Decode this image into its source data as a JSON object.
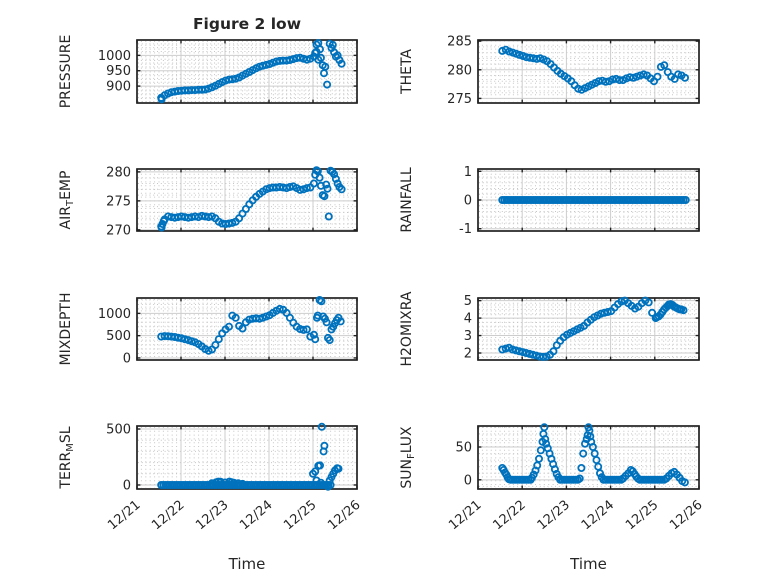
{
  "figure": {
    "title": "Figure 2 low",
    "xlabel": "Time",
    "background": "#ffffff",
    "colors": {
      "marker": "#0072BD",
      "axis": "#212121",
      "text": "#262626",
      "grid_major": "#cdcdcd",
      "grid_minor": "#c6c6c6"
    },
    "x_axis": {
      "lim": [
        21,
        26
      ],
      "ticks": [
        21,
        22,
        23,
        24,
        25,
        26
      ],
      "tick_labels": [
        "12/21",
        "12/22",
        "12/23",
        "12/24",
        "12/25",
        "12/26"
      ],
      "minor_step": 0.1
    }
  },
  "chart_data": [
    {
      "id": "pressure",
      "type": "scatter",
      "label": "PRESSURE",
      "label_parts": [
        {
          "t": "PRESSURE"
        }
      ],
      "ylim": [
        845,
        1050
      ],
      "yticks": [
        900,
        950,
        1000
      ],
      "yminor": 12.5,
      "series": [
        {
          "x0": 21.55,
          "dx": 0.077,
          "y": [
            862,
            870,
            876,
            880,
            882,
            884,
            885,
            886,
            886,
            887,
            887,
            888,
            888,
            889,
            892,
            896,
            901,
            907,
            913,
            918,
            921,
            922,
            924,
            928,
            934,
            940,
            946,
            952,
            958,
            963,
            966,
            969,
            972,
            976,
            980,
            982,
            983,
            983,
            985,
            988,
            991,
            992,
            989,
            986,
            989
          ]
        },
        {
          "x": [
            21.56,
            25.02,
            25.05,
            25.08,
            25.08,
            25.12,
            25.12,
            25.16,
            25.18,
            25.22,
            25.25,
            25.28,
            25.32,
            25.38,
            25.42,
            25.45,
            25.48,
            25.52,
            25.56,
            25.6,
            25.65
          ],
          "y": [
            857,
            996,
            1008,
            1035,
            1012,
            1040,
            986,
            1020,
            992,
            968,
            942,
            963,
            905,
            1038,
            1024,
            1034,
            1010,
            996,
            1000,
            985,
            973
          ]
        }
      ]
    },
    {
      "id": "theta",
      "type": "scatter",
      "label": "THETA",
      "label_parts": [
        {
          "t": "THETA"
        }
      ],
      "ylim": [
        274.2,
        285.2
      ],
      "yticks": [
        275,
        280,
        285
      ],
      "yminor": 1,
      "series": [
        {
          "x0": 21.55,
          "dx": 0.078,
          "y": [
            283.3,
            283.5,
            283.2,
            283.0,
            282.8,
            282.6,
            282.4,
            282.2,
            282.1,
            282.0,
            281.9,
            282.0,
            281.8,
            281.5,
            281.0,
            280.4,
            279.8,
            279.3,
            278.9,
            278.5,
            278.0,
            277.3,
            276.7,
            276.5,
            276.8,
            277.1,
            277.4,
            277.7,
            278.0,
            278.1,
            277.9,
            278.0,
            278.3,
            278.4,
            278.2,
            278.2,
            278.5,
            278.7,
            278.6,
            278.8,
            279.0,
            279.2,
            279.0,
            278.5,
            278.0,
            278.8,
            280.5,
            280.8,
            279.6,
            278.8,
            278.4,
            279.2,
            279.0,
            278.6
          ]
        }
      ]
    },
    {
      "id": "air-temp",
      "type": "scatter",
      "label": "AIR_TEMP",
      "label_parts": [
        {
          "t": "AIR"
        },
        {
          "t": "T",
          "sub": true
        },
        {
          "t": "EMP"
        }
      ],
      "ylim": [
        269.8,
        280.5
      ],
      "yticks": [
        270,
        275,
        280
      ],
      "yminor": 1,
      "series": [
        {
          "x0": 21.55,
          "dx": 0.077,
          "y": [
            270.6,
            271.8,
            272.3,
            272.2,
            272.1,
            272.2,
            272.3,
            272.2,
            272.1,
            272.2,
            272.3,
            272.2,
            272.4,
            272.3,
            272.2,
            272.3,
            272.0,
            271.4,
            271.1,
            271.0,
            271.1,
            271.2,
            271.4,
            272.0,
            272.8,
            273.6,
            274.4,
            275.1,
            275.7,
            276.2,
            276.6,
            277.0,
            277.2,
            277.3,
            277.3,
            277.4,
            277.3,
            277.2,
            277.4,
            277.5,
            277.2,
            276.9,
            277.0,
            277.2,
            277.3
          ]
        },
        {
          "x": [
            21.56,
            21.58,
            21.61,
            25.02,
            25.05,
            25.08,
            25.11,
            25.15,
            25.18,
            25.22,
            25.26,
            25.3,
            25.33,
            25.36,
            25.4,
            25.44,
            25.48,
            25.52,
            25.56,
            25.6,
            25.65
          ],
          "y": [
            270.4,
            271.0,
            271.5,
            278.0,
            279.5,
            280.3,
            280.1,
            279.0,
            277.6,
            276.0,
            275.8,
            277.8,
            277.1,
            272.3,
            280.2,
            280.0,
            279.6,
            278.8,
            278.0,
            277.4,
            277.0
          ]
        }
      ]
    },
    {
      "id": "rainfall",
      "type": "scatter",
      "label": "RAINFALL",
      "label_parts": [
        {
          "t": "RAINFALL"
        }
      ],
      "ylim": [
        -1.08,
        1.08
      ],
      "yticks": [
        -1,
        0,
        1
      ],
      "yminor": 0.2,
      "series": [
        {
          "x0": 21.55,
          "dx": 0.05,
          "n": 84,
          "yc": 0
        }
      ]
    },
    {
      "id": "mixdepth",
      "type": "scatter",
      "label": "MIXDEPTH",
      "label_parts": [
        {
          "t": "MIXDEPTH"
        }
      ],
      "ylim": [
        -46,
        1345
      ],
      "yticks": [
        0,
        500,
        1000
      ],
      "yminor": 100,
      "series": [
        {
          "x0": 21.55,
          "dx": 0.077,
          "y": [
            480,
            490,
            485,
            480,
            470,
            455,
            440,
            420,
            400,
            375,
            350,
            310,
            260,
            200,
            160,
            190,
            290,
            420,
            550,
            640,
            700,
            950,
            900,
            720,
            660,
            800,
            860,
            880,
            890,
            880,
            900,
            930,
            960,
            1010,
            1060,
            1100,
            1080,
            1010,
            900,
            790,
            700,
            650,
            630,
            640,
            480
          ]
        },
        {
          "x": [
            25.02,
            25.05,
            25.09,
            25.11,
            25.15,
            25.19,
            25.23,
            25.27,
            25.31,
            25.34,
            25.38,
            25.42,
            25.46,
            25.5,
            25.54,
            25.58,
            25.63
          ],
          "y": [
            520,
            420,
            900,
            950,
            1300,
            1270,
            930,
            880,
            800,
            450,
            400,
            640,
            700,
            780,
            850,
            900,
            820
          ]
        }
      ]
    },
    {
      "id": "h2omixra",
      "type": "scatter",
      "label": "H2OMIXRA",
      "label_parts": [
        {
          "t": "H2OMIXRA"
        }
      ],
      "ylim": [
        1.6,
        5.15
      ],
      "yticks": [
        2,
        3,
        4,
        5
      ],
      "yminor": 0.25,
      "series": [
        {
          "x0": 21.55,
          "dx": 0.077,
          "y": [
            2.2,
            2.25,
            2.3,
            2.2,
            2.15,
            2.1,
            2.05,
            2.0,
            1.95,
            1.9,
            1.85,
            1.8,
            1.78,
            1.8,
            1.9,
            2.1,
            2.45,
            2.7,
            2.9,
            3.05,
            3.15,
            3.25,
            3.35,
            3.45,
            3.55,
            3.75,
            3.9,
            4.05,
            4.15,
            4.25,
            4.3,
            4.35,
            4.4,
            4.6,
            4.8,
            4.95,
            5.0,
            4.85,
            4.7,
            4.55,
            4.65,
            4.85,
            5.0,
            4.9,
            4.3
          ]
        },
        {
          "x": [
            25.02,
            25.05,
            25.09,
            25.13,
            25.17,
            25.21,
            25.25,
            25.29,
            25.32,
            25.36,
            25.4,
            25.44,
            25.48,
            25.52,
            25.56,
            25.6,
            25.65
          ],
          "y": [
            4.0,
            4.05,
            4.1,
            4.2,
            4.35,
            4.5,
            4.6,
            4.7,
            4.78,
            4.8,
            4.75,
            4.65,
            4.6,
            4.55,
            4.5,
            4.5,
            4.45
          ]
        }
      ]
    },
    {
      "id": "terr-msl",
      "type": "scatter",
      "label": "TERR_MSL",
      "label_parts": [
        {
          "t": "TERR"
        },
        {
          "t": "M",
          "sub": true
        },
        {
          "t": "SL"
        }
      ],
      "ylim": [
        -36,
        527
      ],
      "yticks": [
        0,
        500
      ],
      "yminor": 100,
      "series": [
        {
          "x0": 21.55,
          "dx": 0.05,
          "n": 78,
          "yc": 0
        },
        {
          "x": [
            22.7,
            22.8,
            22.85,
            22.9,
            23.0,
            23.1,
            23.15,
            23.2,
            23.3,
            23.4
          ],
          "y": [
            15,
            25,
            30,
            28,
            22,
            30,
            25,
            20,
            15,
            10
          ]
        },
        {
          "x": [
            25.0,
            25.05,
            25.08,
            25.12,
            25.16,
            25.18,
            25.2,
            25.24,
            25.26,
            25.34,
            25.38,
            25.42,
            25.46,
            25.5,
            25.55,
            25.58
          ],
          "y": [
            100,
            120,
            40,
            170,
            175,
            20,
            520,
            300,
            350,
            -15,
            40,
            70,
            100,
            130,
            150,
            145
          ]
        }
      ]
    },
    {
      "id": "sun-flux",
      "type": "scatter",
      "label": "SUN_FLUX",
      "label_parts": [
        {
          "t": "SUN"
        },
        {
          "t": "F",
          "sub": true
        },
        {
          "t": "LUX"
        }
      ],
      "ylim": [
        -14,
        82
      ],
      "yticks": [
        0,
        50
      ],
      "yminor": 10,
      "series": [
        {
          "x": [
            21.55,
            21.58,
            21.61,
            21.64,
            21.67,
            21.7
          ],
          "y": [
            18,
            15,
            11,
            8,
            4,
            1
          ]
        },
        {
          "x0": 21.74,
          "dx": 0.05,
          "n": 10,
          "yc": 0
        },
        {
          "x": [
            22.22,
            22.26,
            22.3,
            22.34,
            22.38,
            22.42,
            22.46,
            22.48,
            22.5,
            22.52,
            22.54,
            22.58,
            22.62,
            22.66,
            22.7,
            22.74,
            22.78,
            22.82
          ],
          "y": [
            3,
            8,
            14,
            22,
            32,
            45,
            58,
            70,
            80,
            62,
            55,
            48,
            40,
            32,
            24,
            16,
            9,
            4
          ]
        },
        {
          "x0": 22.86,
          "dx": 0.05,
          "n": 9,
          "yc": 0
        },
        {
          "x": [
            23.3,
            23.34,
            23.38,
            23.42,
            23.46,
            23.48,
            23.5,
            23.52,
            23.54,
            23.56,
            23.6,
            23.64,
            23.68,
            23.72,
            23.76,
            23.8
          ],
          "y": [
            2,
            18,
            40,
            55,
            62,
            68,
            80,
            75,
            66,
            58,
            50,
            40,
            30,
            20,
            10,
            4
          ]
        },
        {
          "x0": 23.84,
          "dx": 0.05,
          "n": 9,
          "yc": 0
        },
        {
          "x": [
            24.28,
            24.34,
            24.4,
            24.46,
            24.5,
            24.54,
            24.58,
            24.62
          ],
          "y": [
            2,
            6,
            10,
            15,
            13,
            9,
            5,
            2
          ]
        },
        {
          "x0": 24.66,
          "dx": 0.05,
          "n": 12,
          "yc": 0
        },
        {
          "x": [
            25.26,
            25.32,
            25.38,
            25.44,
            25.5,
            25.56,
            25.62,
            25.68
          ],
          "y": [
            2,
            6,
            10,
            12,
            8,
            3,
            -2,
            -4
          ]
        }
      ]
    }
  ]
}
